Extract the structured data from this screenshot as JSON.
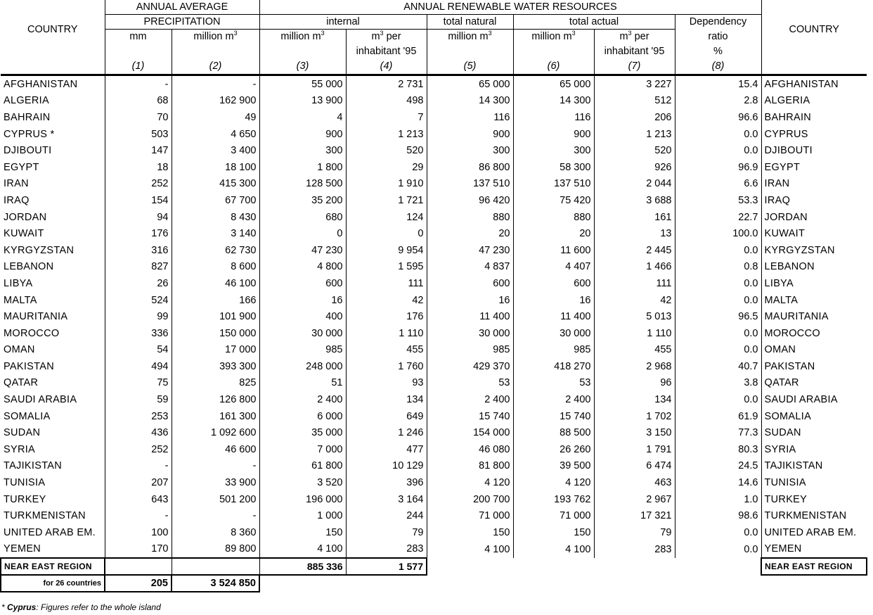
{
  "header": {
    "country_label": "COUNTRY",
    "precip_group_1": "ANNUAL AVERAGE",
    "precip_group_2": "PRECIPITATION",
    "resources_group": "ANNUAL RENEWABLE WATER RESOURCES",
    "internal": "internal",
    "total_natural": "total natural",
    "total_actual": "total actual",
    "dependency_1": "Dependency",
    "dependency_2": "ratio",
    "dependency_3": "%",
    "unit_mm": "mm",
    "unit_million_m3": "million m",
    "unit_m3_per": "m",
    "per_label": " per",
    "inhabitant_95": "inhabitant '95",
    "sup3": "3",
    "col_numbers": [
      "(1)",
      "(2)",
      "(3)",
      "(4)",
      "(5)",
      "(6)",
      "(7)",
      "(8)"
    ]
  },
  "rows": [
    {
      "country": "AFGHANISTAN",
      "c1": "-",
      "c2": "-",
      "c3": "55 000",
      "c4": "2 731",
      "c5": "65 000",
      "c6": "65 000",
      "c7": "3 227",
      "c8": "15.4"
    },
    {
      "country": "ALGERIA",
      "c1": "68",
      "c2": "162 900",
      "c3": "13 900",
      "c4": "498",
      "c5": "14 300",
      "c6": "14 300",
      "c7": "512",
      "c8": "2.8"
    },
    {
      "country": "BAHRAIN",
      "c1": "70",
      "c2": "49",
      "c3": "4",
      "c4": "7",
      "c5": "116",
      "c6": "116",
      "c7": "206",
      "c8": "96.6"
    },
    {
      "country": "CYPRUS *",
      "c1": "503",
      "c2": "4 650",
      "c3": "900",
      "c4": "1 213",
      "c5": "900",
      "c6": "900",
      "c7": "1 213",
      "c8": "0.0",
      "country_right": "CYPRUS"
    },
    {
      "country": "DJIBOUTI",
      "c1": "147",
      "c2": "3 400",
      "c3": "300",
      "c4": "520",
      "c5": "300",
      "c6": "300",
      "c7": "520",
      "c8": "0.0"
    },
    {
      "country": "EGYPT",
      "c1": "18",
      "c2": "18 100",
      "c3": "1 800",
      "c4": "29",
      "c5": "86 800",
      "c6": "58 300",
      "c7": "926",
      "c8": "96.9"
    },
    {
      "country": "IRAN",
      "c1": "252",
      "c2": "415 300",
      "c3": "128 500",
      "c4": "1 910",
      "c5": "137 510",
      "c6": "137 510",
      "c7": "2 044",
      "c8": "6.6"
    },
    {
      "country": "IRAQ",
      "c1": "154",
      "c2": "67 700",
      "c3": "35 200",
      "c4": "1 721",
      "c5": "96 420",
      "c6": "75 420",
      "c7": "3 688",
      "c8": "53.3"
    },
    {
      "country": "JORDAN",
      "c1": "94",
      "c2": "8 430",
      "c3": "680",
      "c4": "124",
      "c5": "880",
      "c6": "880",
      "c7": "161",
      "c8": "22.7"
    },
    {
      "country": "KUWAIT",
      "c1": "176",
      "c2": "3 140",
      "c3": "0",
      "c4": "0",
      "c5": "20",
      "c6": "20",
      "c7": "13",
      "c8": "100.0"
    },
    {
      "country": "KYRGYZSTAN",
      "c1": "316",
      "c2": "62 730",
      "c3": "47 230",
      "c4": "9 954",
      "c5": "47 230",
      "c6": "11 600",
      "c7": "2 445",
      "c8": "0.0"
    },
    {
      "country": "LEBANON",
      "c1": "827",
      "c2": "8 600",
      "c3": "4 800",
      "c4": "1 595",
      "c5": "4 837",
      "c6": "4 407",
      "c7": "1 466",
      "c8": "0.8"
    },
    {
      "country": "LIBYA",
      "c1": "26",
      "c2": "46 100",
      "c3": "600",
      "c4": "111",
      "c5": "600",
      "c6": "600",
      "c7": "111",
      "c8": "0.0"
    },
    {
      "country": "MALTA",
      "c1": "524",
      "c2": "166",
      "c3": "16",
      "c4": "42",
      "c5": "16",
      "c6": "16",
      "c7": "42",
      "c8": "0.0"
    },
    {
      "country": "MAURITANIA",
      "c1": "99",
      "c2": "101 900",
      "c3": "400",
      "c4": "176",
      "c5": "11 400",
      "c6": "11 400",
      "c7": "5 013",
      "c8": "96.5"
    },
    {
      "country": "MOROCCO",
      "c1": "336",
      "c2": "150 000",
      "c3": "30 000",
      "c4": "1 110",
      "c5": "30 000",
      "c6": "30 000",
      "c7": "1 110",
      "c8": "0.0"
    },
    {
      "country": "OMAN",
      "c1": "54",
      "c2": "17 000",
      "c3": "985",
      "c4": "455",
      "c5": "985",
      "c6": "985",
      "c7": "455",
      "c8": "0.0"
    },
    {
      "country": "PAKISTAN",
      "c1": "494",
      "c2": "393 300",
      "c3": "248 000",
      "c4": "1 760",
      "c5": "429 370",
      "c6": "418 270",
      "c7": "2 968",
      "c8": "40.7"
    },
    {
      "country": "QATAR",
      "c1": "75",
      "c2": "825",
      "c3": "51",
      "c4": "93",
      "c5": "53",
      "c6": "53",
      "c7": "96",
      "c8": "3.8"
    },
    {
      "country": "SAUDI ARABIA",
      "c1": "59",
      "c2": "126 800",
      "c3": "2 400",
      "c4": "134",
      "c5": "2 400",
      "c6": "2 400",
      "c7": "134",
      "c8": "0.0"
    },
    {
      "country": "SOMALIA",
      "c1": "253",
      "c2": "161 300",
      "c3": "6 000",
      "c4": "649",
      "c5": "15 740",
      "c6": "15 740",
      "c7": "1 702",
      "c8": "61.9"
    },
    {
      "country": "SUDAN",
      "c1": "436",
      "c2": "1 092 600",
      "c3": "35 000",
      "c4": "1 246",
      "c5": "154 000",
      "c6": "88 500",
      "c7": "3 150",
      "c8": "77.3"
    },
    {
      "country": "SYRIA",
      "c1": "252",
      "c2": "46 600",
      "c3": "7 000",
      "c4": "477",
      "c5": "46 080",
      "c6": "26 260",
      "c7": "1 791",
      "c8": "80.3"
    },
    {
      "country": "TAJIKISTAN",
      "c1": "-",
      "c2": "-",
      "c3": "61 800",
      "c4": "10 129",
      "c5": "81 800",
      "c6": "39 500",
      "c7": "6 474",
      "c8": "24.5"
    },
    {
      "country": "TUNISIA",
      "c1": "207",
      "c2": "33 900",
      "c3": "3 520",
      "c4": "396",
      "c5": "4 120",
      "c6": "4 120",
      "c7": "463",
      "c8": "14.6"
    },
    {
      "country": "TURKEY",
      "c1": "643",
      "c2": "501 200",
      "c3": "196 000",
      "c4": "3 164",
      "c5": "200 700",
      "c6": "193 762",
      "c7": "2 967",
      "c8": "1.0"
    },
    {
      "country": "TURKMENISTAN",
      "c1": "-",
      "c2": "-",
      "c3": "1 000",
      "c4": "244",
      "c5": "71 000",
      "c6": "71 000",
      "c7": "17 321",
      "c8": "98.6"
    },
    {
      "country": "UNITED ARAB EM.",
      "c1": "100",
      "c2": "8 360",
      "c3": "150",
      "c4": "79",
      "c5": "150",
      "c6": "150",
      "c7": "79",
      "c8": "0.0"
    },
    {
      "country": "YEMEN",
      "c1": "170",
      "c2": "89 800",
      "c3": "4 100",
      "c4": "283",
      "c5": "4 100",
      "c6": "4 100",
      "c7": "283",
      "c8": "0.0"
    }
  ],
  "region": {
    "label": "NEAR EAST REGION",
    "c3": "885 336",
    "c4": "1 577",
    "sub_label": "for 26 countries",
    "c1": "205",
    "c2": "3 524 850"
  },
  "footnote": {
    "marker": "* ",
    "name": "Cyprus",
    "text": ": Figures refer to the whole island"
  }
}
